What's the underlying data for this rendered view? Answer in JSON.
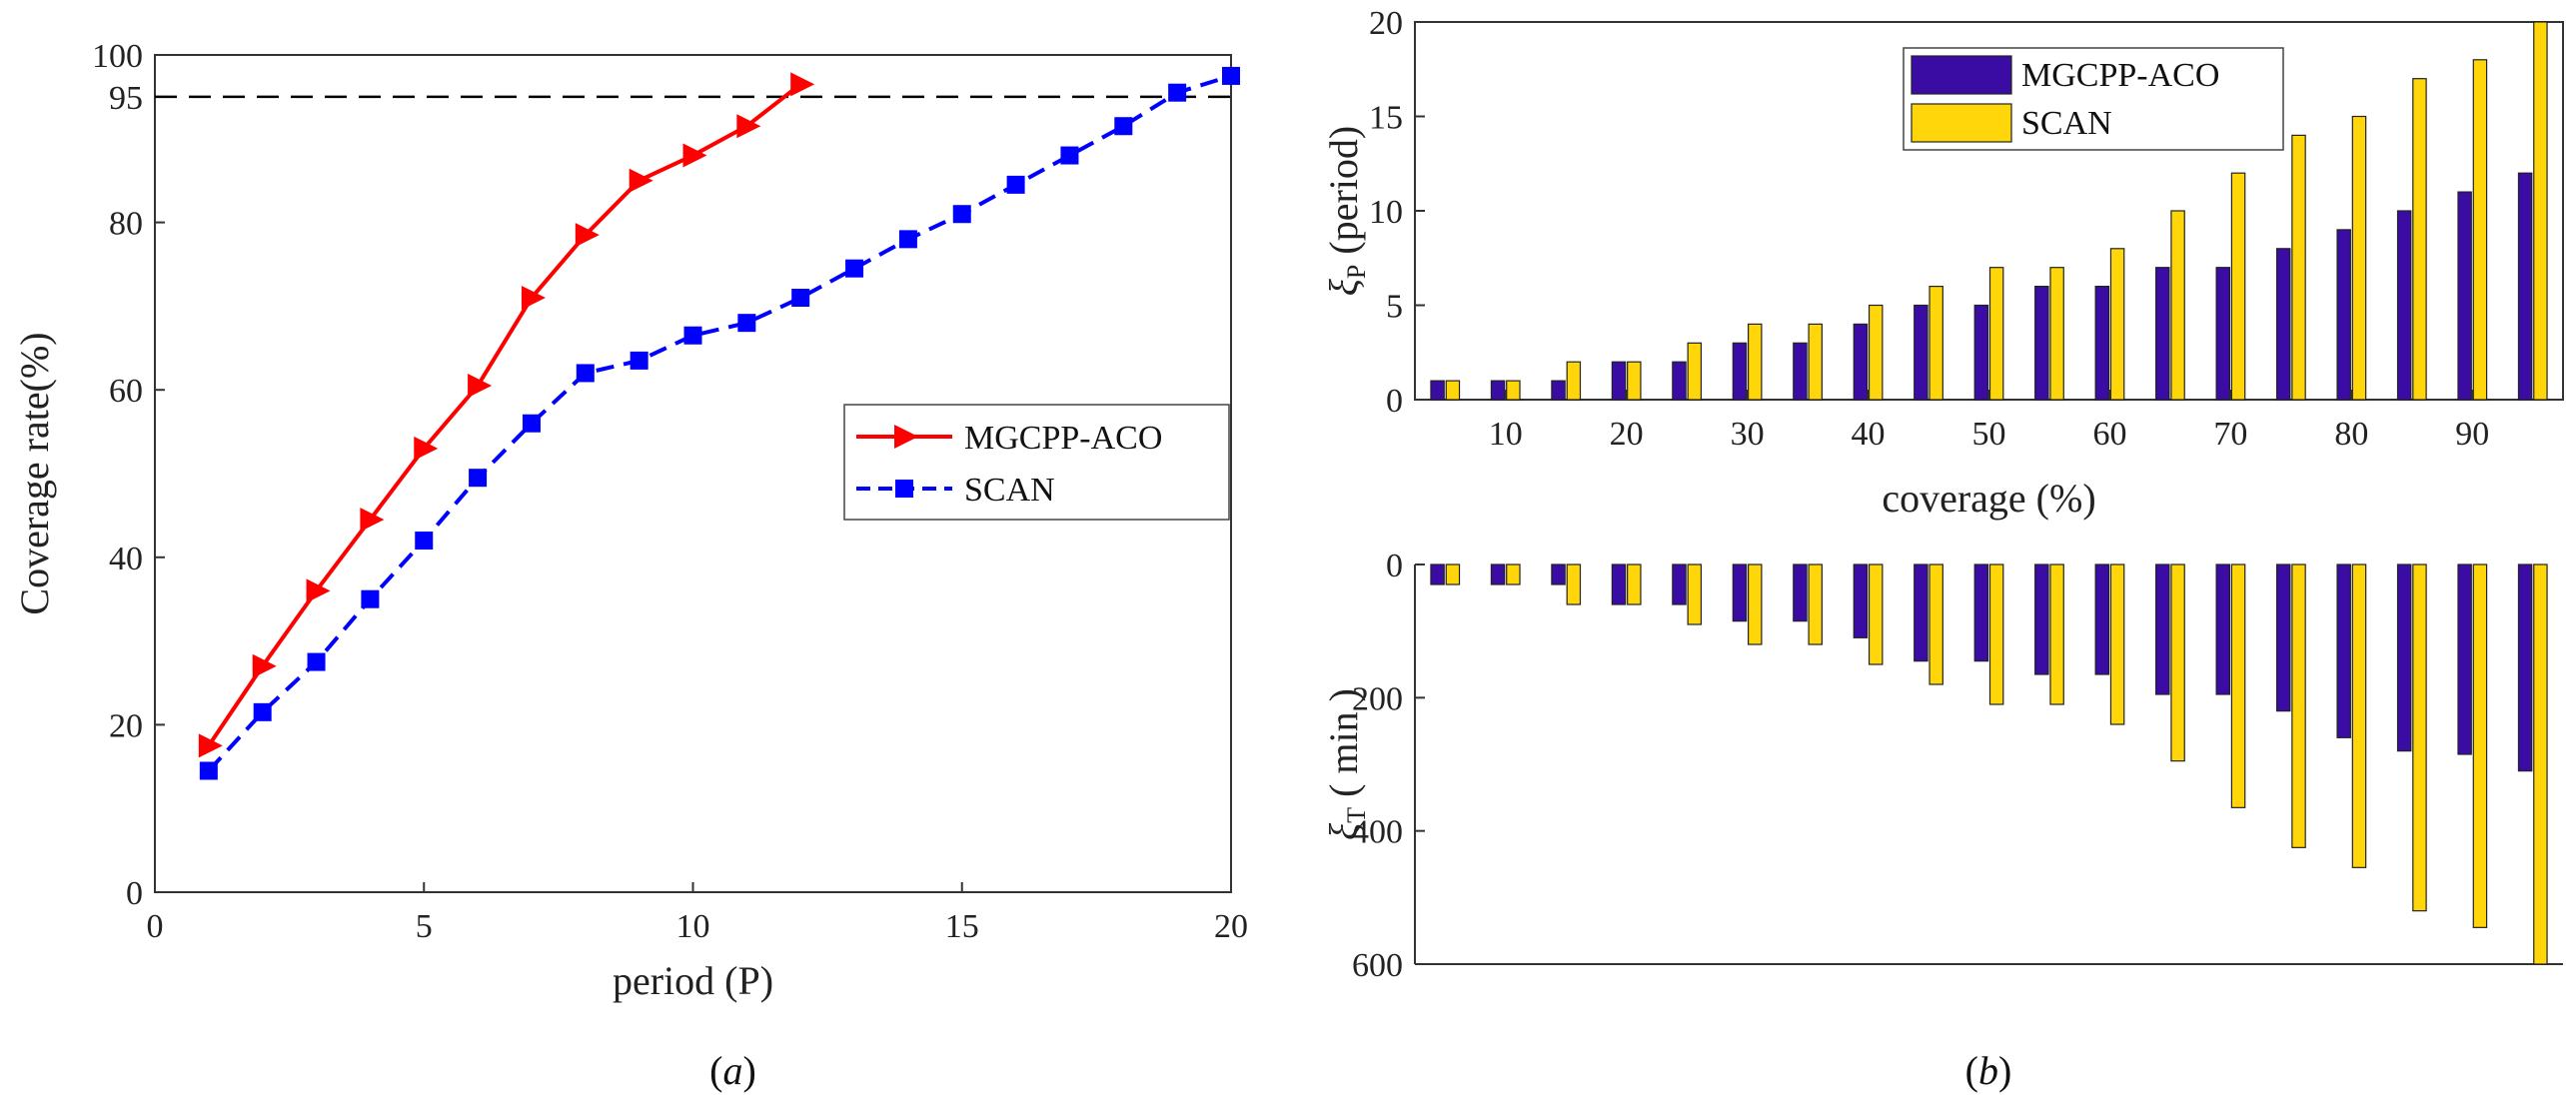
{
  "chart_data": [
    {
      "id": "a",
      "type": "line",
      "xlabel": "period (P)",
      "ylabel": "Coverage rate(%)",
      "xlim": [
        0,
        20
      ],
      "ylim": [
        0,
        100
      ],
      "xticks": [
        0,
        5,
        10,
        15,
        20
      ],
      "yticks": [
        0,
        20,
        40,
        60,
        80,
        95,
        100
      ],
      "reference_line": {
        "y": 95,
        "style": "dashed",
        "color": "#000000"
      },
      "legend": {
        "position": "right"
      },
      "grid": false,
      "caption": {
        "pre": "(",
        "letter": "a",
        "post": ")"
      },
      "series": [
        {
          "name": "MGCPP-ACO",
          "color": "#ff0000",
          "line_style": "solid",
          "marker": "triangle-right",
          "x": [
            1,
            2,
            3,
            4,
            5,
            6,
            7,
            8,
            9,
            10,
            11,
            12
          ],
          "y": [
            17.5,
            27,
            36,
            44.5,
            53,
            60.5,
            71,
            78.5,
            85,
            88,
            91.5,
            96.5
          ]
        },
        {
          "name": "SCAN",
          "color": "#0000ff",
          "line_style": "dashed",
          "marker": "square",
          "x": [
            1,
            2,
            3,
            4,
            5,
            6,
            7,
            8,
            9,
            10,
            11,
            12,
            13,
            14,
            15,
            16,
            17,
            18,
            19,
            20
          ],
          "y": [
            14.5,
            21.5,
            27.5,
            35,
            42,
            49.5,
            56,
            62,
            63.5,
            66.5,
            68,
            71,
            74.5,
            78,
            81,
            84.5,
            88,
            91.5,
            95.5,
            97.5
          ]
        }
      ]
    },
    {
      "id": "b-top",
      "type": "bar",
      "ylabel_symbol": "ξ",
      "ylabel_sub": "P",
      "ylabel_text": "(period)",
      "xlabel": "coverage (%)",
      "xlim": [
        2.5,
        97.5
      ],
      "ylim": [
        0,
        20
      ],
      "xticks": [
        10,
        20,
        30,
        40,
        50,
        60,
        70,
        80,
        90
      ],
      "yticks": [
        0,
        5,
        10,
        15,
        20
      ],
      "legend": {
        "position": "top-left"
      },
      "x": [
        5,
        10,
        15,
        20,
        25,
        30,
        35,
        40,
        45,
        50,
        55,
        60,
        65,
        70,
        75,
        80,
        85,
        90,
        95
      ],
      "series": [
        {
          "name": "MGCPP-ACO",
          "color": "#3a0ca3",
          "values": [
            1,
            1,
            1,
            2,
            2,
            3,
            3,
            4,
            5,
            5,
            6,
            6,
            7,
            7,
            8,
            9,
            10,
            11,
            12
          ]
        },
        {
          "name": "SCAN",
          "color": "#ffd60a",
          "values": [
            1,
            1,
            2,
            2,
            3,
            4,
            4,
            5,
            6,
            7,
            7,
            8,
            10,
            12,
            14,
            15,
            17,
            18,
            20
          ]
        }
      ]
    },
    {
      "id": "b-bottom",
      "type": "bar",
      "ylabel_symbol": "ξ",
      "ylabel_sub": "T",
      "ylabel_text": "( min )",
      "xlim": [
        2.5,
        97.5
      ],
      "ylim": [
        0,
        600
      ],
      "yticks": [
        0,
        200,
        400,
        600
      ],
      "inverted_y": true,
      "caption": {
        "pre": "(",
        "letter": "b",
        "post": ")"
      },
      "x": [
        5,
        10,
        15,
        20,
        25,
        30,
        35,
        40,
        45,
        50,
        55,
        60,
        65,
        70,
        75,
        80,
        85,
        90,
        95
      ],
      "series": [
        {
          "name": "MGCPP-ACO",
          "color": "#3a0ca3",
          "values": [
            30,
            30,
            30,
            60,
            60,
            85,
            85,
            110,
            145,
            145,
            165,
            165,
            195,
            195,
            220,
            260,
            280,
            285,
            310
          ]
        },
        {
          "name": "SCAN",
          "color": "#ffd60a",
          "values": [
            30,
            30,
            60,
            60,
            90,
            120,
            120,
            150,
            180,
            210,
            210,
            240,
            295,
            365,
            425,
            455,
            520,
            545,
            600
          ]
        }
      ]
    }
  ]
}
